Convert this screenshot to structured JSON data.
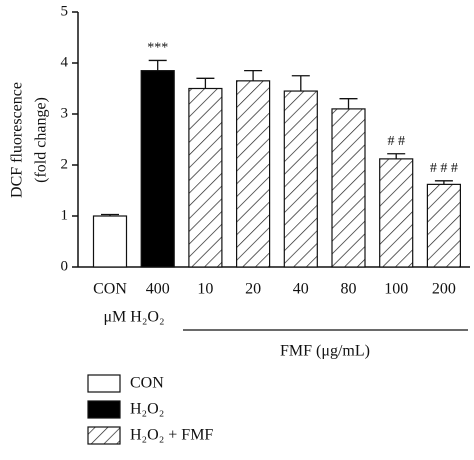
{
  "chart_data": {
    "type": "bar",
    "ylabel": [
      "DCF fluorescence",
      "(fold change)"
    ],
    "categories": [
      "CON",
      "400",
      "10",
      "20",
      "40",
      "80",
      "100",
      "200"
    ],
    "values": [
      1.0,
      3.85,
      3.5,
      3.65,
      3.45,
      3.1,
      2.12,
      1.62
    ],
    "errors": [
      0.03,
      0.2,
      0.2,
      0.2,
      0.3,
      0.2,
      0.1,
      0.07
    ],
    "bar_group": [
      0,
      1,
      2,
      2,
      2,
      2,
      2,
      2
    ],
    "groups": [
      {
        "name": "CON",
        "fill": "white"
      },
      {
        "name": "H₂O₂",
        "fill": "black"
      },
      {
        "name": "H₂O₂ + FMF",
        "fill": "hatch"
      }
    ],
    "annotations": [
      {
        "text": "***",
        "category": "400"
      },
      {
        "text": "# #",
        "category": "100"
      },
      {
        "text": "# # #",
        "category": "200"
      }
    ],
    "group_labels": [
      "μM H₂O₂",
      "FMF (μg/mL)"
    ],
    "ylim": [
      0,
      5
    ],
    "yticks": [
      0,
      1,
      2,
      3,
      4,
      5
    ]
  }
}
